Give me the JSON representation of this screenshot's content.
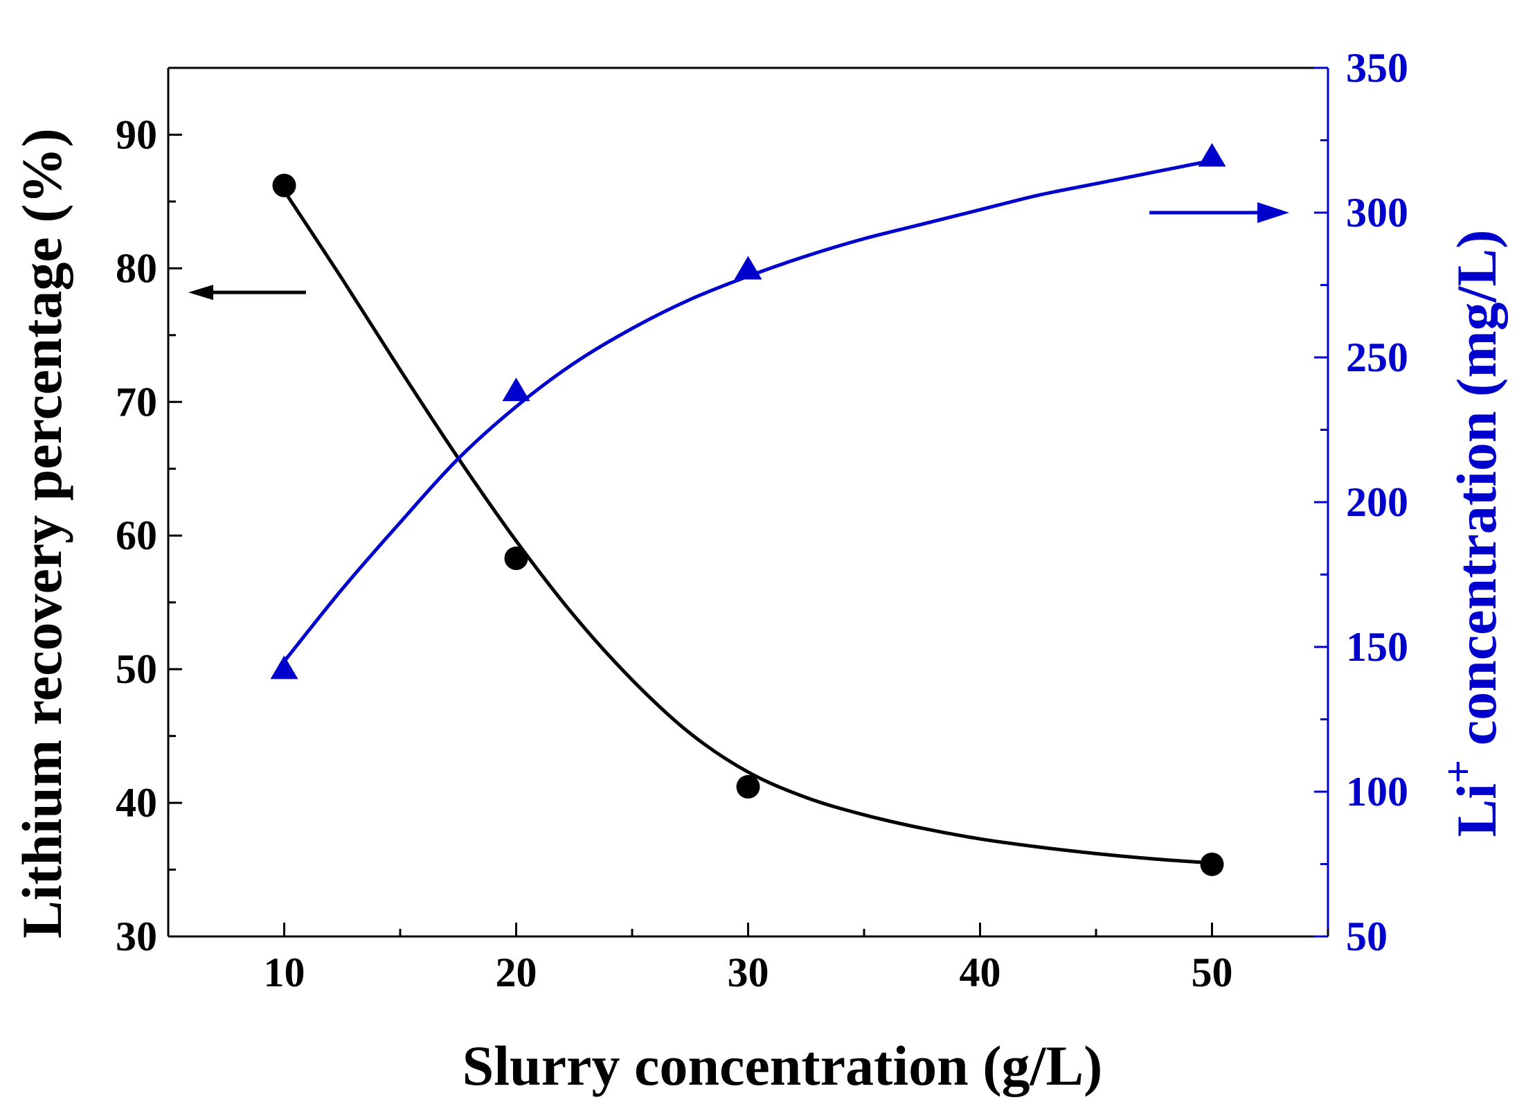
{
  "chart_data": {
    "type": "scatter",
    "title": "",
    "xlabel": "Slurry concentration (g/L)",
    "ylabel_left": "Lithium recovery percentage (%)",
    "ylabel_right_prefix": "Li",
    "ylabel_right_superscript": "+",
    "ylabel_right_suffix": " concentration (mg/L)",
    "xlim": [
      5,
      55
    ],
    "x_ticks": [
      10,
      20,
      30,
      40,
      50
    ],
    "x_tick_labels": [
      "10",
      "20",
      "30",
      "40",
      "50"
    ],
    "ylim_left": [
      30,
      95
    ],
    "y_ticks_left": [
      30,
      40,
      50,
      60,
      70,
      80,
      90
    ],
    "y_tick_labels_left": [
      "30",
      "40",
      "50",
      "60",
      "70",
      "80",
      "90"
    ],
    "ylim_right": [
      50,
      350
    ],
    "y_ticks_right": [
      50,
      100,
      150,
      200,
      250,
      300,
      350
    ],
    "y_tick_labels_right": [
      "50",
      "100",
      "150",
      "200",
      "250",
      "300",
      "350"
    ],
    "grid": false,
    "series": [
      {
        "name": "Lithium recovery percentage",
        "axis": "left",
        "marker": "circle",
        "color": "#000000",
        "x": [
          10,
          20,
          30,
          50
        ],
        "values": [
          86.2,
          58.3,
          41.2,
          35.4
        ],
        "fit_curve": {
          "x": [
            10,
            12.5,
            15,
            17.5,
            20,
            22.5,
            25,
            27.5,
            30,
            32.5,
            35,
            37.5,
            40,
            42.5,
            45,
            47.5,
            50
          ],
          "y": [
            85.8,
            79.2,
            72.4,
            65.8,
            59.6,
            54.0,
            49.2,
            45.2,
            42.3,
            40.4,
            39.1,
            38.1,
            37.3,
            36.7,
            36.2,
            35.8,
            35.5
          ]
        }
      },
      {
        "name": "Li+ concentration",
        "axis": "right",
        "marker": "triangle",
        "color": "#0000cc",
        "x": [
          10,
          20,
          30,
          50
        ],
        "values": [
          142,
          238,
          280,
          319
        ],
        "fit_curve": {
          "x": [
            10,
            12.5,
            15,
            17.5,
            20,
            22.5,
            25,
            27.5,
            30,
            32.5,
            35,
            37.5,
            40,
            42.5,
            45,
            47.5,
            50
          ],
          "y": [
            145,
            170,
            193,
            215,
            233,
            248,
            260,
            270,
            278,
            285,
            291,
            296,
            301,
            306,
            310,
            314,
            318
          ]
        }
      }
    ],
    "annotations": [
      {
        "name": "left-axis-arrow",
        "direction": "left",
        "color": "#000000"
      },
      {
        "name": "right-axis-arrow",
        "direction": "right",
        "color": "#0000cc"
      }
    ]
  }
}
